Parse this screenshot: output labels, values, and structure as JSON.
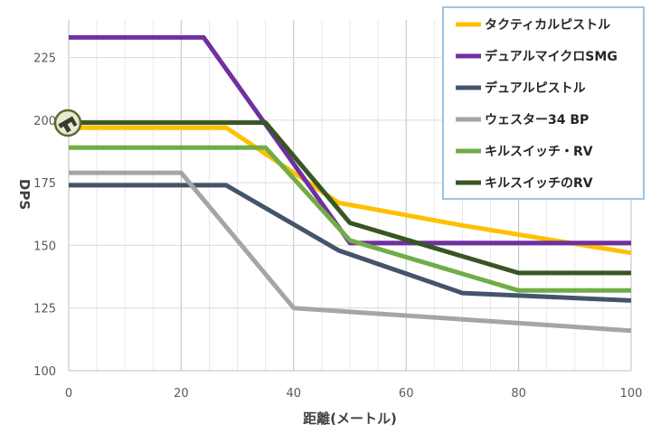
{
  "chart_data": {
    "type": "line",
    "title": "",
    "xlabel": "距離(メートル)",
    "ylabel": "DPS",
    "xlim": [
      0,
      100
    ],
    "ylim": [
      100,
      240
    ],
    "xticks": [
      0,
      20,
      40,
      60,
      80,
      100
    ],
    "yticks": [
      100,
      125,
      150,
      175,
      200,
      225
    ],
    "grid": true,
    "legend_position": "top-right",
    "series": [
      {
        "name": "タクティカルピストル",
        "color": "#FFC000",
        "points": [
          [
            0,
            197
          ],
          [
            28,
            197
          ],
          [
            48,
            167
          ],
          [
            70,
            158
          ],
          [
            100,
            147
          ]
        ]
      },
      {
        "name": "デュアルマイクロSMG",
        "color": "#7030A0",
        "points": [
          [
            0,
            233
          ],
          [
            24,
            233
          ],
          [
            50,
            151
          ],
          [
            100,
            151
          ]
        ]
      },
      {
        "name": "デュアルピストル",
        "color": "#44546A",
        "points": [
          [
            0,
            174
          ],
          [
            28,
            174
          ],
          [
            48,
            148
          ],
          [
            70,
            131
          ],
          [
            100,
            128
          ]
        ]
      },
      {
        "name": "ウェスター34 BP",
        "color": "#A5A5A5",
        "points": [
          [
            0,
            179
          ],
          [
            20,
            179
          ],
          [
            40,
            125
          ],
          [
            100,
            116
          ]
        ]
      },
      {
        "name": "キルスイッチ・RV",
        "color": "#70AD47",
        "points": [
          [
            0,
            189
          ],
          [
            35,
            189
          ],
          [
            50,
            152
          ],
          [
            80,
            132
          ],
          [
            100,
            132
          ]
        ]
      },
      {
        "name": "キルスイッチのRV",
        "color": "#375623",
        "points": [
          [
            0,
            199
          ],
          [
            35,
            199
          ],
          [
            50,
            159
          ],
          [
            80,
            139
          ],
          [
            100,
            139
          ]
        ]
      }
    ]
  },
  "icon": {
    "name": "gun-icon",
    "color": "#5B6B2E"
  }
}
